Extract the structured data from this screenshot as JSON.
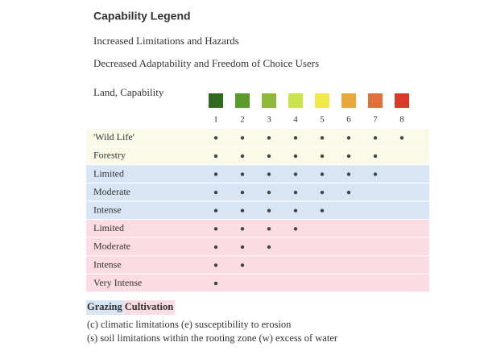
{
  "header": {
    "title": "Capability Legend",
    "lines": [
      "Increased Limitations and Hazards",
      "Decreased Adaptability and Freedom of Choice Users"
    ]
  },
  "table": {
    "label": "Land, Capability",
    "classes": [
      {
        "number": 1,
        "color": "#2f6a1e"
      },
      {
        "number": 2,
        "color": "#5b9a2d"
      },
      {
        "number": 3,
        "color": "#8cb93a"
      },
      {
        "number": 4,
        "color": "#cde34c"
      },
      {
        "number": 5,
        "color": "#f1e84c"
      },
      {
        "number": 6,
        "color": "#e8a73b"
      },
      {
        "number": 7,
        "color": "#e0713a"
      },
      {
        "number": 8,
        "color": "#d83b29"
      }
    ],
    "sections": [
      {
        "color": "#fafae9",
        "rows": [
          {
            "label": "'Wild Life'",
            "classes": [
              1,
              2,
              3,
              4,
              5,
              6,
              7,
              8
            ]
          },
          {
            "label": "Forestry",
            "classes": [
              1,
              2,
              3,
              4,
              5,
              6,
              7
            ]
          }
        ]
      },
      {
        "name": "Grazing",
        "color": "#d7e5f5",
        "rows": [
          {
            "label": "Limited",
            "classes": [
              1,
              2,
              3,
              4,
              5,
              6,
              7
            ]
          },
          {
            "label": "Moderate",
            "classes": [
              1,
              2,
              3,
              4,
              5,
              6
            ]
          },
          {
            "label": "Intense",
            "classes": [
              1,
              2,
              3,
              4,
              5
            ]
          }
        ]
      },
      {
        "name": "Cultivation",
        "color": "#fadce2",
        "rows": [
          {
            "label": "Limited",
            "classes": [
              1,
              2,
              3,
              4
            ]
          },
          {
            "label": "Moderate",
            "classes": [
              1,
              2,
              3
            ]
          },
          {
            "label": "Intense",
            "classes": [
              1,
              2
            ]
          },
          {
            "label": "Very Intense",
            "classes": [
              1
            ]
          }
        ]
      }
    ]
  },
  "notes": [
    "(c) climatic limitations (e) susceptibility to erosion",
    "(s) soil limitations within the rooting zone (w) excess of water"
  ]
}
